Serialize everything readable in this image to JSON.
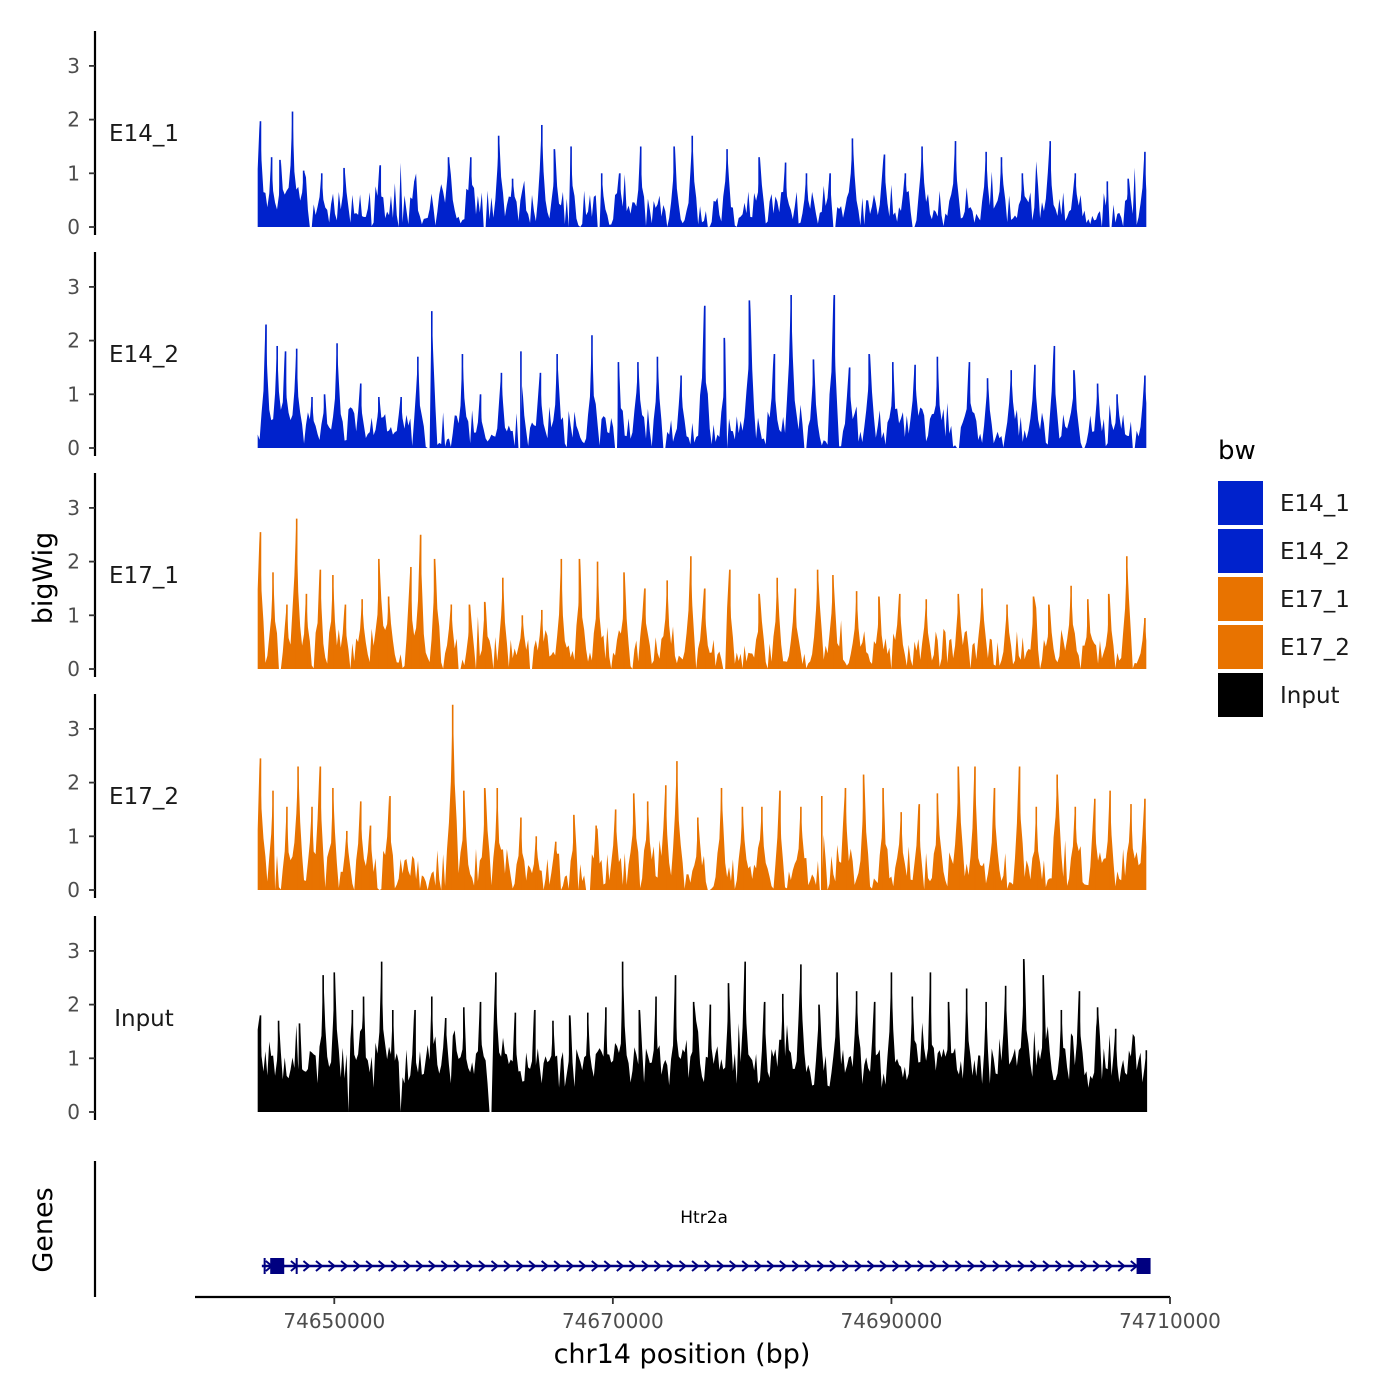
{
  "chart_data": {
    "type": "area",
    "title": "",
    "ylabel": "bigWig",
    "genes_label": "Genes",
    "xlabel": "chr14 position (bp)",
    "x_range": [
      74640000,
      74710000
    ],
    "data_x_range": [
      74644500,
      74708300
    ],
    "x_ticks": [
      74650000,
      74670000,
      74690000,
      74710000
    ],
    "x_tick_labels": [
      "74650000",
      "74670000",
      "74690000",
      "74710000"
    ],
    "y_range": [
      0,
      3.6
    ],
    "y_ticks": [
      0,
      1,
      2,
      3
    ],
    "y_tick_labels": [
      "0",
      "1",
      "2",
      "3"
    ],
    "legend": {
      "title": "bw",
      "entries": [
        {
          "label": "E14_1",
          "color": "#0022CC"
        },
        {
          "label": "E14_2",
          "color": "#0022CC"
        },
        {
          "label": "E17_1",
          "color": "#E87300"
        },
        {
          "label": "E17_2",
          "color": "#E87300"
        },
        {
          "label": "Input",
          "color": "#000000"
        }
      ]
    },
    "tracks": [
      {
        "label": "E14_1",
        "color": "#0022CC",
        "peaks": [
          [
            74644700,
            1.97
          ],
          [
            74645500,
            1.3
          ],
          [
            74646100,
            1.25
          ],
          [
            74647000,
            2.15
          ],
          [
            74647800,
            1.05
          ],
          [
            74649100,
            1.0
          ],
          [
            74650700,
            1.1
          ],
          [
            74653300,
            1.15
          ],
          [
            74655800,
            0.85
          ],
          [
            74658200,
            1.3
          ],
          [
            74659800,
            1.3
          ],
          [
            74661800,
            1.7
          ],
          [
            74662800,
            0.9
          ],
          [
            74664900,
            1.9
          ],
          [
            74665800,
            1.45
          ],
          [
            74667000,
            1.5
          ],
          [
            74669200,
            1.0
          ],
          [
            74670500,
            1.0
          ],
          [
            74672000,
            1.5
          ],
          [
            74674400,
            1.5
          ],
          [
            74675700,
            1.7
          ],
          [
            74678200,
            1.45
          ],
          [
            74680500,
            1.3
          ],
          [
            74682400,
            1.2
          ],
          [
            74683900,
            1.0
          ],
          [
            74685600,
            1.0
          ],
          [
            74687200,
            1.65
          ],
          [
            74689500,
            1.35
          ],
          [
            74691000,
            1.0
          ],
          [
            74692200,
            1.5
          ],
          [
            74694600,
            1.6
          ],
          [
            74696800,
            1.4
          ],
          [
            74697900,
            1.3
          ],
          [
            74699400,
            1.0
          ],
          [
            74701400,
            1.6
          ],
          [
            74703200,
            1.0
          ],
          [
            74705500,
            0.85
          ],
          [
            74707000,
            0.9
          ],
          [
            74708200,
            1.4
          ]
        ],
        "gaps": [
          [
            74648200,
            74648400
          ],
          [
            74660700,
            74660900
          ],
          [
            74666800,
            74666950
          ],
          [
            74668900,
            74669100
          ],
          [
            74673800,
            74674000
          ],
          [
            74676700,
            74676900
          ],
          [
            74685800,
            74686000
          ],
          [
            74691500,
            74691700
          ],
          [
            74705600,
            74705900
          ]
        ]
      },
      {
        "label": "E14_2",
        "color": "#0022CC",
        "peaks": [
          [
            74645100,
            2.3
          ],
          [
            74645900,
            1.9
          ],
          [
            74646500,
            1.8
          ],
          [
            74647300,
            1.85
          ],
          [
            74648400,
            0.95
          ],
          [
            74649300,
            1.0
          ],
          [
            74650200,
            1.95
          ],
          [
            74651900,
            1.2
          ],
          [
            74653200,
            0.95
          ],
          [
            74654800,
            0.95
          ],
          [
            74656000,
            1.7
          ],
          [
            74657000,
            2.55
          ],
          [
            74659200,
            1.75
          ],
          [
            74660500,
            1.0
          ],
          [
            74662000,
            1.4
          ],
          [
            74663400,
            1.8
          ],
          [
            74664800,
            1.4
          ],
          [
            74666000,
            1.75
          ],
          [
            74668500,
            2.1
          ],
          [
            74670400,
            1.6
          ],
          [
            74671800,
            1.6
          ],
          [
            74673200,
            1.7
          ],
          [
            74674900,
            1.35
          ],
          [
            74676600,
            2.65
          ],
          [
            74678000,
            2.05
          ],
          [
            74679800,
            2.75
          ],
          [
            74681600,
            1.75
          ],
          [
            74682800,
            2.85
          ],
          [
            74684400,
            1.65
          ],
          [
            74685900,
            2.85
          ],
          [
            74687000,
            1.5
          ],
          [
            74688400,
            1.75
          ],
          [
            74690100,
            1.6
          ],
          [
            74691700,
            1.55
          ],
          [
            74693300,
            1.7
          ],
          [
            74695600,
            1.6
          ],
          [
            74696900,
            1.3
          ],
          [
            74698600,
            1.45
          ],
          [
            74700300,
            1.55
          ],
          [
            74701700,
            1.9
          ],
          [
            74703100,
            1.45
          ],
          [
            74704800,
            1.2
          ],
          [
            74706200,
            1.0
          ],
          [
            74708200,
            1.35
          ]
        ],
        "gaps": [
          [
            74656700,
            74656900
          ],
          [
            74663200,
            74663400
          ],
          [
            74670100,
            74670300
          ],
          [
            74673600,
            74673800
          ],
          [
            74678100,
            74678300
          ],
          [
            74683700,
            74683900
          ],
          [
            74694700,
            74694900
          ],
          [
            74703700,
            74703900
          ],
          [
            74707300,
            74707500
          ]
        ]
      },
      {
        "label": "E17_1",
        "color": "#E87300",
        "peaks": [
          [
            74644700,
            2.55
          ],
          [
            74645600,
            1.8
          ],
          [
            74646600,
            1.2
          ],
          [
            74647300,
            2.8
          ],
          [
            74648000,
            1.4
          ],
          [
            74649000,
            1.85
          ],
          [
            74649900,
            1.75
          ],
          [
            74650800,
            1.2
          ],
          [
            74652000,
            1.3
          ],
          [
            74653200,
            2.05
          ],
          [
            74653900,
            1.35
          ],
          [
            74655500,
            1.9
          ],
          [
            74656200,
            2.5
          ],
          [
            74657200,
            2.05
          ],
          [
            74658400,
            1.2
          ],
          [
            74659700,
            1.2
          ],
          [
            74660800,
            1.25
          ],
          [
            74662100,
            1.7
          ],
          [
            74663500,
            1.0
          ],
          [
            74664900,
            1.1
          ],
          [
            74666300,
            2.05
          ],
          [
            74667600,
            2.05
          ],
          [
            74668900,
            2.0
          ],
          [
            74670800,
            1.8
          ],
          [
            74672300,
            1.5
          ],
          [
            74673900,
            1.65
          ],
          [
            74675600,
            2.1
          ],
          [
            74676600,
            1.5
          ],
          [
            74678400,
            1.85
          ],
          [
            74680500,
            1.4
          ],
          [
            74681800,
            1.7
          ],
          [
            74683100,
            1.5
          ],
          [
            74684700,
            1.85
          ],
          [
            74685800,
            1.75
          ],
          [
            74687500,
            1.45
          ],
          [
            74689100,
            1.35
          ],
          [
            74690600,
            1.4
          ],
          [
            74692500,
            1.3
          ],
          [
            74694800,
            1.4
          ],
          [
            74696500,
            1.5
          ],
          [
            74698300,
            1.2
          ],
          [
            74700200,
            1.35
          ],
          [
            74701300,
            1.2
          ],
          [
            74702900,
            1.55
          ],
          [
            74704100,
            1.3
          ],
          [
            74705600,
            1.4
          ],
          [
            74706900,
            2.1
          ],
          [
            74708200,
            0.95
          ]
        ],
        "gaps": [
          [
            74646000,
            74646200
          ],
          [
            74658900,
            74659100
          ],
          [
            74661300,
            74661500
          ],
          [
            74664000,
            74664200
          ],
          [
            74671300,
            74671500
          ],
          [
            74677900,
            74678100
          ],
          [
            74689900,
            74690100
          ],
          [
            74703500,
            74703700
          ]
        ]
      },
      {
        "label": "E17_2",
        "color": "#E87300",
        "peaks": [
          [
            74644700,
            2.45
          ],
          [
            74645600,
            1.85
          ],
          [
            74646600,
            1.55
          ],
          [
            74647400,
            2.3
          ],
          [
            74648400,
            1.55
          ],
          [
            74649000,
            2.3
          ],
          [
            74649900,
            1.9
          ],
          [
            74650900,
            1.1
          ],
          [
            74651900,
            1.65
          ],
          [
            74652600,
            1.2
          ],
          [
            74654000,
            1.75
          ],
          [
            74658500,
            3.45
          ],
          [
            74659300,
            1.85
          ],
          [
            74660800,
            1.9
          ],
          [
            74661700,
            1.9
          ],
          [
            74663400,
            1.35
          ],
          [
            74664500,
            1.0
          ],
          [
            74665900,
            0.9
          ],
          [
            74667200,
            1.4
          ],
          [
            74668800,
            1.2
          ],
          [
            74670200,
            1.5
          ],
          [
            74671500,
            1.8
          ],
          [
            74672500,
            1.65
          ],
          [
            74673800,
            1.95
          ],
          [
            74674600,
            2.4
          ],
          [
            74676100,
            1.35
          ],
          [
            74677800,
            1.9
          ],
          [
            74679300,
            1.55
          ],
          [
            74680700,
            1.55
          ],
          [
            74682000,
            1.85
          ],
          [
            74683500,
            1.55
          ],
          [
            74685000,
            1.75
          ],
          [
            74686700,
            1.9
          ],
          [
            74688000,
            2.15
          ],
          [
            74689400,
            1.9
          ],
          [
            74690700,
            1.45
          ],
          [
            74692000,
            1.6
          ],
          [
            74693300,
            1.8
          ],
          [
            74694800,
            2.3
          ],
          [
            74696000,
            2.3
          ],
          [
            74697400,
            1.9
          ],
          [
            74699200,
            2.3
          ],
          [
            74700400,
            1.55
          ],
          [
            74701900,
            2.15
          ],
          [
            74703200,
            1.55
          ],
          [
            74704600,
            1.7
          ],
          [
            74705700,
            1.85
          ],
          [
            74707200,
            1.6
          ],
          [
            74708200,
            1.7
          ]
        ],
        "gaps": [
          [
            74645700,
            74645850
          ],
          [
            74651300,
            74651500
          ],
          [
            74653100,
            74653300
          ],
          [
            74656600,
            74656800
          ],
          [
            74657600,
            74657800
          ],
          [
            74664900,
            74665100
          ],
          [
            74666200,
            74666400
          ],
          [
            74667400,
            74667600
          ],
          [
            74668000,
            74668400
          ],
          [
            74676800,
            74677000
          ],
          [
            74684800,
            74685000
          ]
        ]
      },
      {
        "label": "Input",
        "color": "#000000",
        "peaks": [
          [
            74644700,
            1.8
          ],
          [
            74646000,
            1.7
          ],
          [
            74647500,
            1.65
          ],
          [
            74649200,
            2.55
          ],
          [
            74650000,
            2.6
          ],
          [
            74651300,
            1.9
          ],
          [
            74652100,
            2.15
          ],
          [
            74653400,
            2.8
          ],
          [
            74654200,
            1.9
          ],
          [
            74655800,
            1.9
          ],
          [
            74657000,
            2.15
          ],
          [
            74658000,
            1.75
          ],
          [
            74659300,
            1.95
          ],
          [
            74660500,
            2.05
          ],
          [
            74661600,
            2.6
          ],
          [
            74663000,
            1.85
          ],
          [
            74664400,
            1.9
          ],
          [
            74665700,
            1.7
          ],
          [
            74666900,
            1.8
          ],
          [
            74668200,
            1.85
          ],
          [
            74669500,
            1.95
          ],
          [
            74670700,
            2.8
          ],
          [
            74671900,
            1.9
          ],
          [
            74673100,
            2.15
          ],
          [
            74674500,
            2.55
          ],
          [
            74675800,
            2.05
          ],
          [
            74677000,
            2.0
          ],
          [
            74678300,
            2.4
          ],
          [
            74679500,
            2.8
          ],
          [
            74680900,
            2.05
          ],
          [
            74682200,
            2.2
          ],
          [
            74683500,
            2.75
          ],
          [
            74684800,
            2.0
          ],
          [
            74686100,
            2.6
          ],
          [
            74687500,
            2.25
          ],
          [
            74688800,
            2.05
          ],
          [
            74690000,
            2.6
          ],
          [
            74691500,
            2.15
          ],
          [
            74692800,
            2.6
          ],
          [
            74694100,
            2.05
          ],
          [
            74695400,
            2.3
          ],
          [
            74696800,
            2.05
          ],
          [
            74698200,
            2.35
          ],
          [
            74699500,
            2.85
          ],
          [
            74700900,
            2.55
          ],
          [
            74702200,
            1.9
          ],
          [
            74703500,
            2.25
          ],
          [
            74704800,
            1.95
          ],
          [
            74706100,
            1.55
          ],
          [
            74707400,
            1.4
          ],
          [
            74708300,
            1.15
          ]
        ],
        "gaps": [
          [
            74650900,
            74651100
          ],
          [
            74654700,
            74654900
          ],
          [
            74661100,
            74661300
          ]
        ]
      }
    ],
    "genes": [
      {
        "name": "Htr2a",
        "start": 74644800,
        "end": 74708300,
        "strand": "+",
        "color": "#000080",
        "exons": [
          [
            74645400,
            74646000
          ],
          [
            74707600,
            74708100
          ]
        ],
        "extra_marks": [
          74645000,
          74647300
        ]
      }
    ]
  }
}
